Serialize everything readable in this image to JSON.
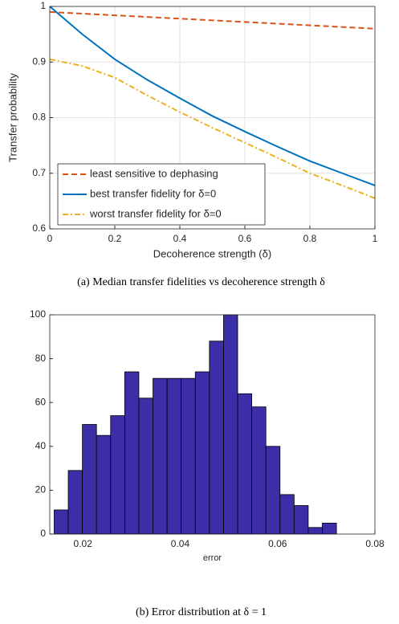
{
  "chart_data": [
    {
      "type": "line",
      "caption": "(a) Median transfer fidelities vs decoherence strength δ",
      "xlabel": "Decoherence strength (δ)",
      "ylabel": "Transfer probability",
      "x": [
        0,
        0.1,
        0.2,
        0.3,
        0.4,
        0.5,
        0.6,
        0.7,
        0.8,
        0.9,
        1
      ],
      "series": [
        {
          "name": "least sensitive to dephasing",
          "color": "#d95319",
          "style": "dashed",
          "values": [
            0.99,
            0.987,
            0.984,
            0.981,
            0.978,
            0.975,
            0.972,
            0.969,
            0.966,
            0.963,
            0.96
          ]
        },
        {
          "name": "best transfer fidelity for δ=0",
          "color": "#0072bd",
          "style": "solid",
          "values": [
            1.0,
            0.95,
            0.905,
            0.868,
            0.835,
            0.803,
            0.775,
            0.748,
            0.722,
            0.7,
            0.678
          ]
        },
        {
          "name": "worst transfer fidelity for δ=0",
          "color": "#edb120",
          "style": "dashdot",
          "values": [
            0.905,
            0.893,
            0.872,
            0.84,
            0.81,
            0.782,
            0.755,
            0.728,
            0.7,
            0.678,
            0.655
          ]
        }
      ],
      "xlim": [
        0,
        1
      ],
      "xticks": [
        0,
        0.2,
        0.4,
        0.6,
        0.8,
        1
      ],
      "ylim": [
        0.6,
        1
      ],
      "yticks": [
        0.6,
        0.7,
        0.8,
        0.9,
        1
      ],
      "grid": true,
      "legend": "lower left"
    },
    {
      "type": "histogram",
      "caption": "(b) Error distribution at δ = 1",
      "xlabel": "error",
      "bins": [
        0.0141,
        0.017,
        0.0199,
        0.0228,
        0.0257,
        0.0286,
        0.0315,
        0.0344,
        0.0373,
        0.0402,
        0.0431,
        0.046,
        0.0489,
        0.0518,
        0.0547,
        0.0576,
        0.0605,
        0.0634,
        0.0663,
        0.0692,
        0.0721
      ],
      "values": [
        11,
        29,
        50,
        45,
        54,
        74,
        62,
        71,
        71,
        71,
        74,
        88,
        100,
        64,
        58,
        40,
        18,
        13,
        3,
        5
      ],
      "color": "#3b2ea6",
      "xlim": [
        0.0132,
        0.08
      ],
      "xticks": [
        0.02,
        0.04,
        0.06,
        0.08
      ],
      "ylim": [
        0,
        100
      ],
      "yticks": [
        0,
        20,
        40,
        60,
        80,
        100
      ],
      "grid": false
    }
  ]
}
